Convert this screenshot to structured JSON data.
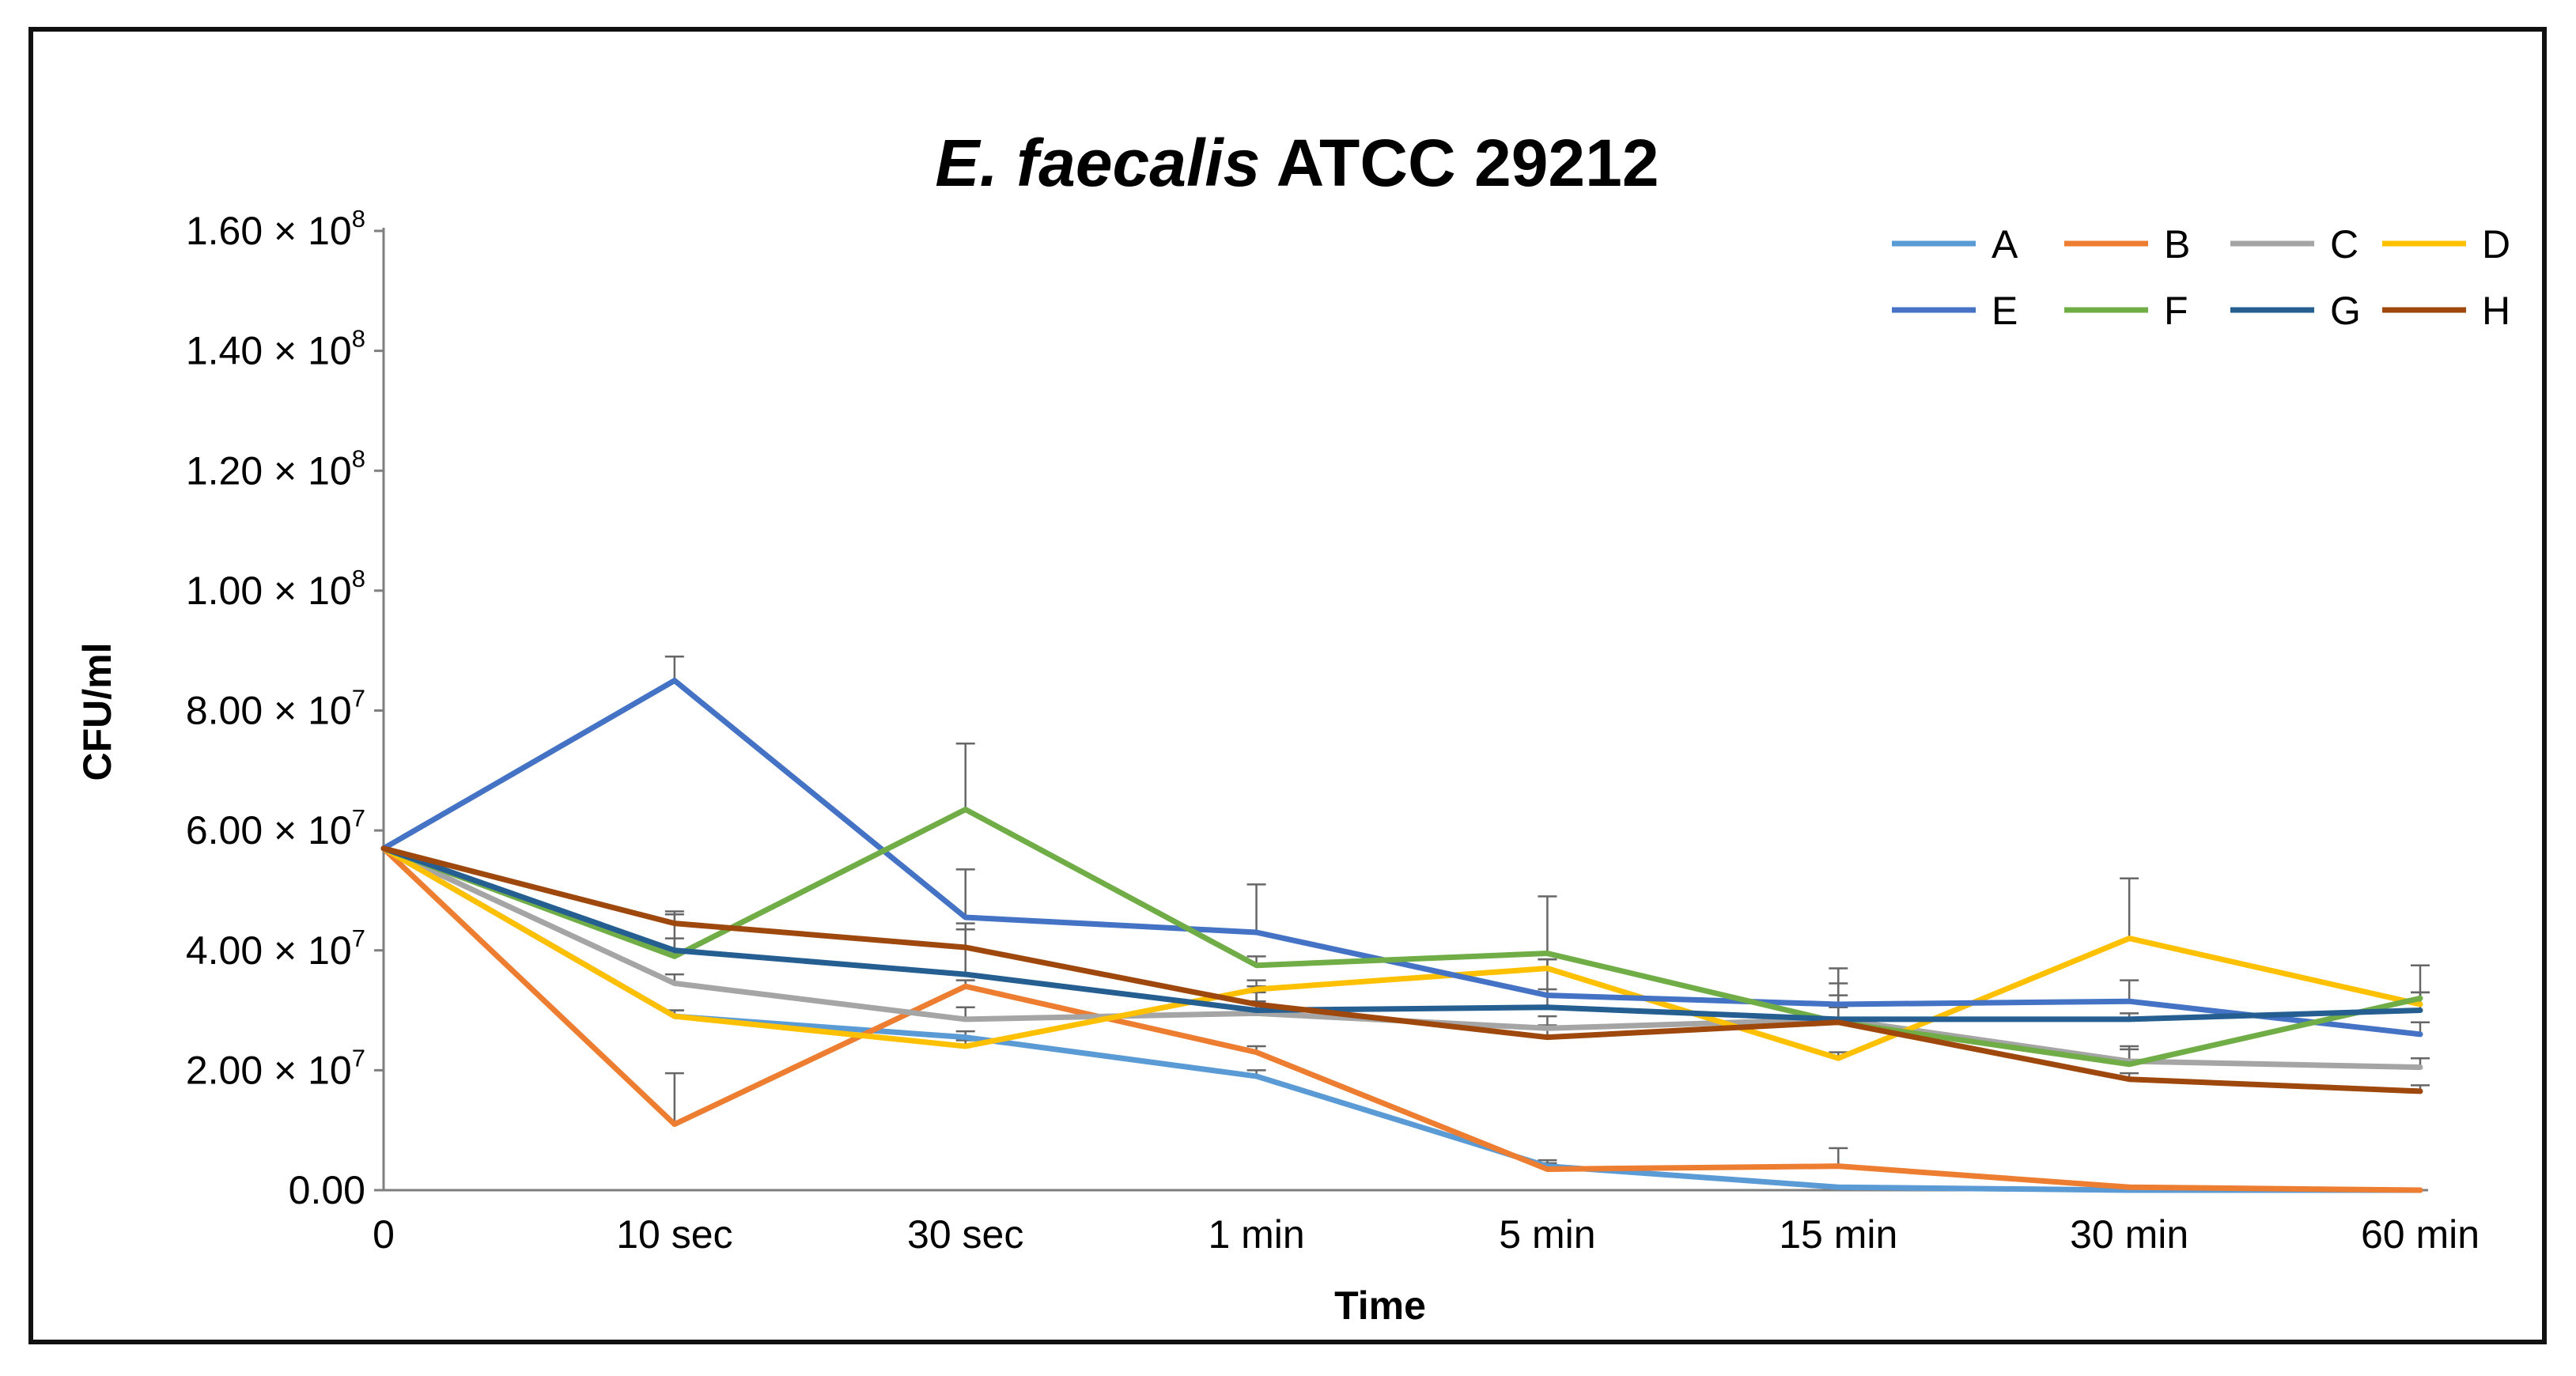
{
  "chart_data": {
    "type": "line",
    "title_italic": "E. faecalis",
    "title_rest": "ATCC 29212",
    "xlabel": "Time",
    "ylabel": "CFU/ml",
    "categories": [
      "0",
      "10 sec",
      "30 sec",
      "1 min",
      "5 min",
      "15 min",
      "30 min",
      "60 min"
    ],
    "ylim": [
      0,
      160000000
    ],
    "y_ticks": [
      {
        "value": 0,
        "mant": "0.00",
        "times": "",
        "base": "",
        "exp": ""
      },
      {
        "value": 20000000,
        "mant": "2.00",
        "times": "×",
        "base": "10",
        "exp": "7"
      },
      {
        "value": 40000000,
        "mant": "4.00",
        "times": "×",
        "base": "10",
        "exp": "7"
      },
      {
        "value": 60000000,
        "mant": "6.00",
        "times": "×",
        "base": "10",
        "exp": "7"
      },
      {
        "value": 80000000,
        "mant": "8.00",
        "times": "×",
        "base": "10",
        "exp": "7"
      },
      {
        "value": 100000000,
        "mant": "1.00",
        "times": "×",
        "base": "10",
        "exp": "8"
      },
      {
        "value": 120000000,
        "mant": "1.20",
        "times": "×",
        "base": "10",
        "exp": "8"
      },
      {
        "value": 140000000,
        "mant": "1.40",
        "times": "×",
        "base": "10",
        "exp": "8"
      },
      {
        "value": 160000000,
        "mant": "1.60",
        "times": "×",
        "base": "10",
        "exp": "8"
      }
    ],
    "legend_position": "top-right",
    "series": [
      {
        "name": "A",
        "color": "#5B9BD5",
        "values": [
          57000000,
          29000000,
          25500000,
          19000000,
          4000000,
          500000,
          0,
          0
        ],
        "errors": [
          0,
          1000000,
          1000000,
          1000000,
          1000000,
          0,
          0,
          0
        ]
      },
      {
        "name": "B",
        "color": "#ED7D31",
        "values": [
          57000000,
          11000000,
          34000000,
          23000000,
          3500000,
          4000000,
          500000,
          0
        ],
        "errors": [
          0,
          8500000,
          1000000,
          1000000,
          1000000,
          3000000,
          0,
          0
        ]
      },
      {
        "name": "C",
        "color": "#A5A5A5",
        "values": [
          57000000,
          34500000,
          28500000,
          29500000,
          27000000,
          28500000,
          21500000,
          20500000
        ],
        "errors": [
          0,
          1500000,
          2000000,
          2000000,
          2000000,
          2000000,
          2000000,
          1500000
        ]
      },
      {
        "name": "D",
        "color": "#FFC000",
        "values": [
          57000000,
          29000000,
          24000000,
          33500000,
          37000000,
          22000000,
          42000000,
          31000000
        ],
        "errors": [
          0,
          1000000,
          1000000,
          1500000,
          1500000,
          1000000,
          10000000,
          2000000
        ]
      },
      {
        "name": "E",
        "color": "#4472C4",
        "values": [
          57000000,
          85000000,
          45500000,
          43000000,
          32500000,
          31000000,
          31500000,
          26000000
        ],
        "errors": [
          0,
          4000000,
          8000000,
          8000000,
          1000000,
          3500000,
          3500000,
          2000000
        ]
      },
      {
        "name": "F",
        "color": "#70AD47",
        "values": [
          57000000,
          39000000,
          63500000,
          37500000,
          39500000,
          28000000,
          21000000,
          32000000
        ],
        "errors": [
          0,
          7000000,
          11000000,
          1500000,
          9500000,
          9000000,
          3000000,
          5500000
        ]
      },
      {
        "name": "G",
        "color": "#255E91",
        "values": [
          57000000,
          40000000,
          36000000,
          30000000,
          30500000,
          28500000,
          28500000,
          30000000
        ],
        "errors": [
          0,
          2000000,
          7500000,
          3000000,
          8000000,
          4000000,
          1000000,
          3000000
        ]
      },
      {
        "name": "H",
        "color": "#9E480E",
        "values": [
          57000000,
          44500000,
          40500000,
          31000000,
          25500000,
          28000000,
          18500000,
          16500000
        ],
        "errors": [
          0,
          2000000,
          4000000,
          3000000,
          2000000,
          3000000,
          1000000,
          1000000
        ]
      }
    ]
  }
}
